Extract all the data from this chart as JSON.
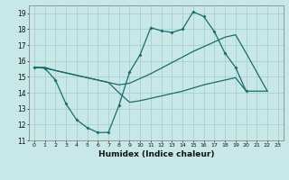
{
  "xlabel": "Humidex (Indice chaleur)",
  "xlim": [
    -0.5,
    23.5
  ],
  "ylim": [
    11,
    19.5
  ],
  "xticks": [
    0,
    1,
    2,
    3,
    4,
    5,
    6,
    7,
    8,
    9,
    10,
    11,
    12,
    13,
    14,
    15,
    16,
    17,
    18,
    19,
    20,
    21,
    22,
    23
  ],
  "yticks": [
    11,
    12,
    13,
    14,
    15,
    16,
    17,
    18,
    19
  ],
  "bg_color": "#c8e8e8",
  "grid_color": "#a8cece",
  "line_color": "#1a6b6b",
  "line1_x": [
    0,
    1,
    2,
    3,
    4,
    5,
    6,
    7,
    8,
    9,
    10,
    11,
    12,
    13,
    14,
    15,
    16,
    17,
    18,
    19,
    20
  ],
  "line1_y": [
    15.6,
    15.55,
    14.8,
    13.3,
    12.3,
    11.8,
    11.5,
    11.5,
    13.2,
    15.3,
    16.4,
    18.1,
    17.9,
    17.8,
    18.0,
    19.1,
    18.8,
    17.85,
    16.5,
    15.6,
    14.1
  ],
  "line2_x": [
    0,
    1,
    2,
    3,
    4,
    5,
    6,
    7,
    8,
    9,
    10,
    11,
    12,
    13,
    14,
    15,
    16,
    17,
    18,
    19,
    20,
    22
  ],
  "line2_y": [
    15.6,
    15.6,
    15.4,
    15.25,
    15.1,
    14.95,
    14.8,
    14.65,
    14.5,
    14.6,
    14.9,
    15.2,
    15.55,
    15.9,
    16.25,
    16.6,
    16.9,
    17.2,
    17.5,
    17.65,
    16.5,
    14.1
  ],
  "line3_x": [
    0,
    1,
    2,
    3,
    4,
    5,
    6,
    7,
    8,
    9,
    10,
    11,
    12,
    13,
    14,
    15,
    16,
    17,
    18,
    19,
    20,
    22
  ],
  "line3_y": [
    15.6,
    15.55,
    15.4,
    15.25,
    15.1,
    14.95,
    14.8,
    14.65,
    14.0,
    13.4,
    13.5,
    13.65,
    13.8,
    13.95,
    14.1,
    14.3,
    14.5,
    14.65,
    14.8,
    14.95,
    14.1,
    14.1
  ]
}
